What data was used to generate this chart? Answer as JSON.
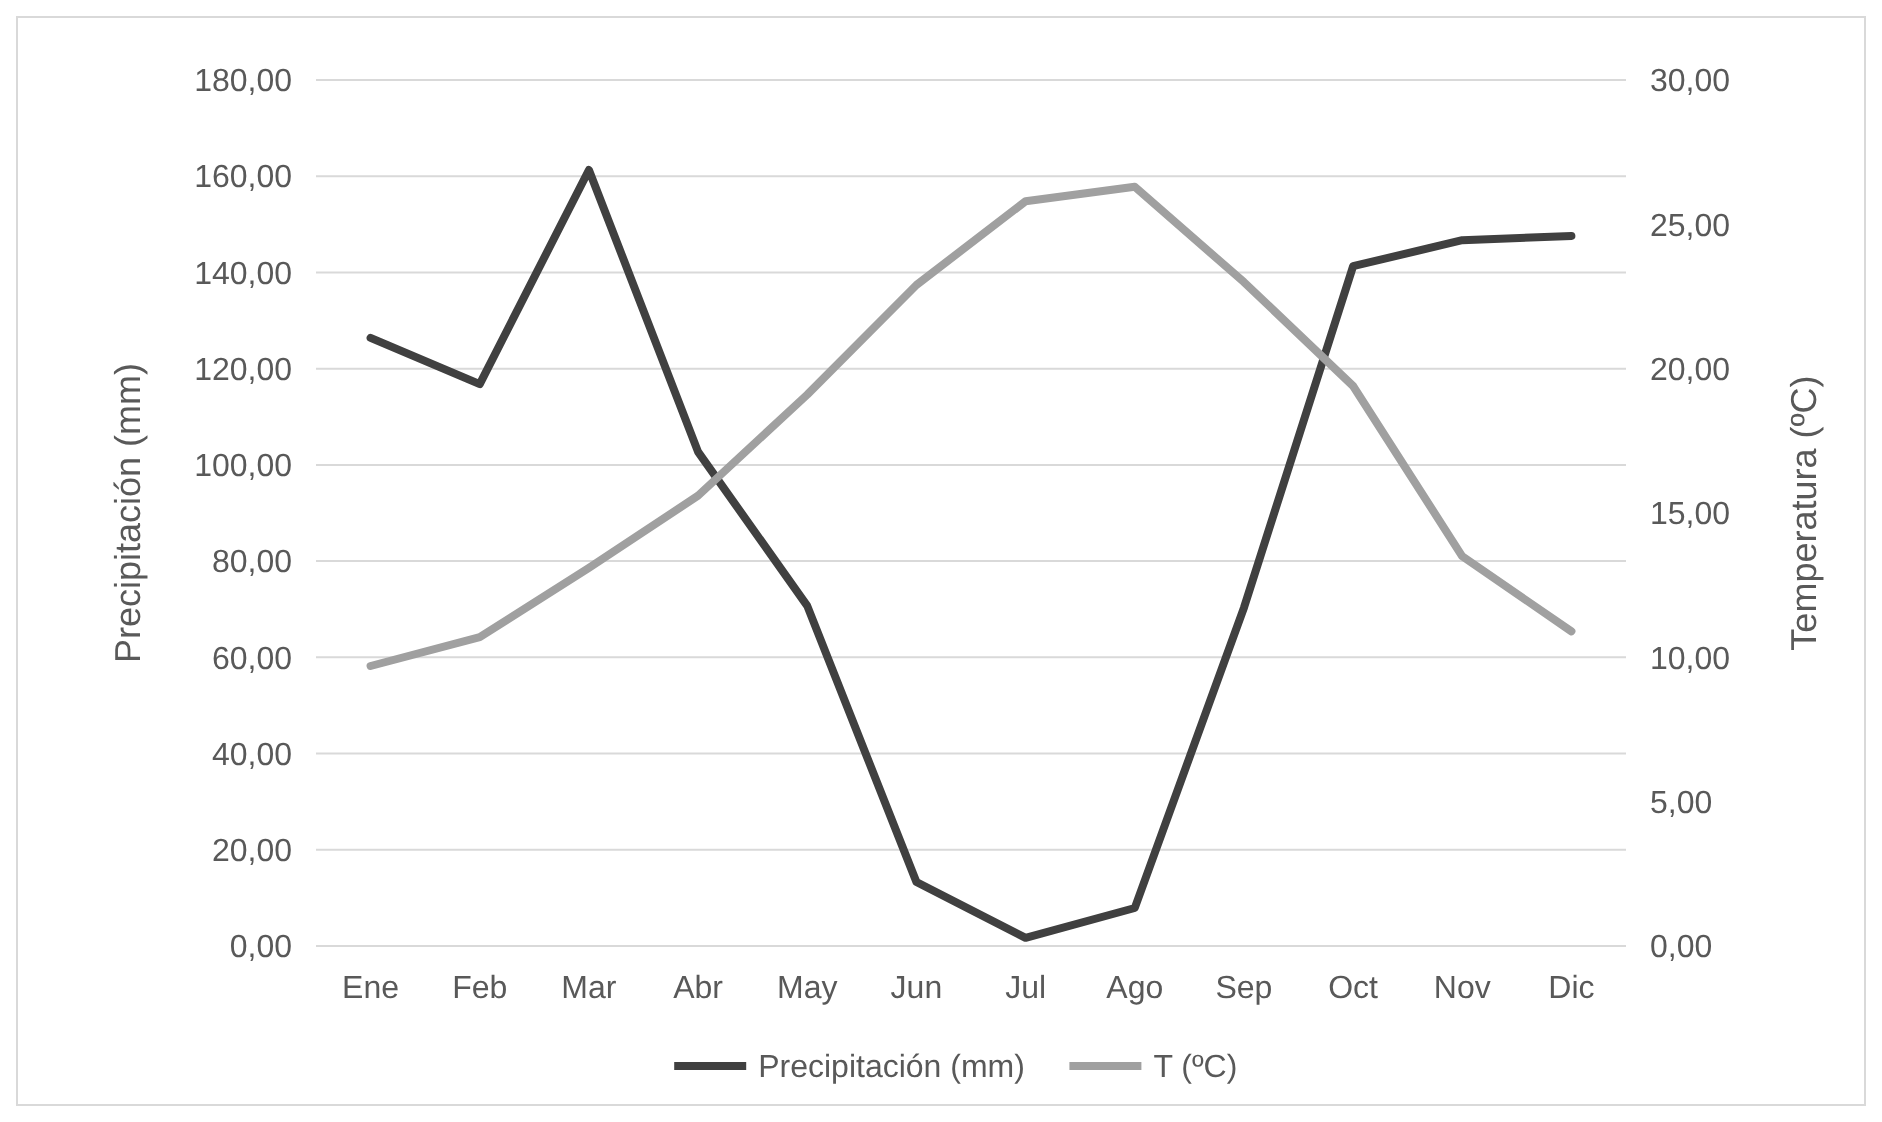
{
  "chart_data": {
    "type": "line",
    "categories": [
      "Ene",
      "Feb",
      "Mar",
      "Abr",
      "May",
      "Jun",
      "Jul",
      "Ago",
      "Sep",
      "Oct",
      "Nov",
      "Dic"
    ],
    "series": [
      {
        "name": "Precipitación (mm)",
        "color": "#404040",
        "values": [
          126.4,
          116.8,
          161.3,
          102.7,
          70.7,
          13.3,
          1.7,
          7.9,
          70.3,
          141.3,
          146.7,
          147.6
        ]
      },
      {
        "name": "T (ºC)",
        "color": "#a0a0a0",
        "axis": "y2",
        "values": [
          9.7,
          10.7,
          13.1,
          15.6,
          19.1,
          22.9,
          25.8,
          26.3,
          23.0,
          19.4,
          13.5,
          10.9
        ]
      }
    ],
    "ylabel": "Precipitación (mm)",
    "y2label": "Temperatura (ºC)",
    "ylim": [
      0,
      180
    ],
    "yticks": [
      {
        "value": 0,
        "label": "0,00"
      },
      {
        "value": 20,
        "label": "20,00"
      },
      {
        "value": 40,
        "label": "40,00"
      },
      {
        "value": 60,
        "label": "60,00"
      },
      {
        "value": 80,
        "label": "80,00"
      },
      {
        "value": 100,
        "label": "100,00"
      },
      {
        "value": 120,
        "label": "120,00"
      },
      {
        "value": 140,
        "label": "140,00"
      },
      {
        "value": 160,
        "label": "160,00"
      },
      {
        "value": 180,
        "label": "180,00"
      }
    ],
    "y2lim": [
      0,
      30
    ],
    "y2ticks": [
      {
        "value": 0,
        "label": "0,00"
      },
      {
        "value": 5,
        "label": "5,00"
      },
      {
        "value": 10,
        "label": "10,00"
      },
      {
        "value": 15,
        "label": "15,00"
      },
      {
        "value": 20,
        "label": "20,00"
      },
      {
        "value": 25,
        "label": "25,00"
      },
      {
        "value": 30,
        "label": "30,00"
      }
    ],
    "grid": "y",
    "legend": "bottom",
    "marker": "none",
    "line_style": "solid"
  }
}
